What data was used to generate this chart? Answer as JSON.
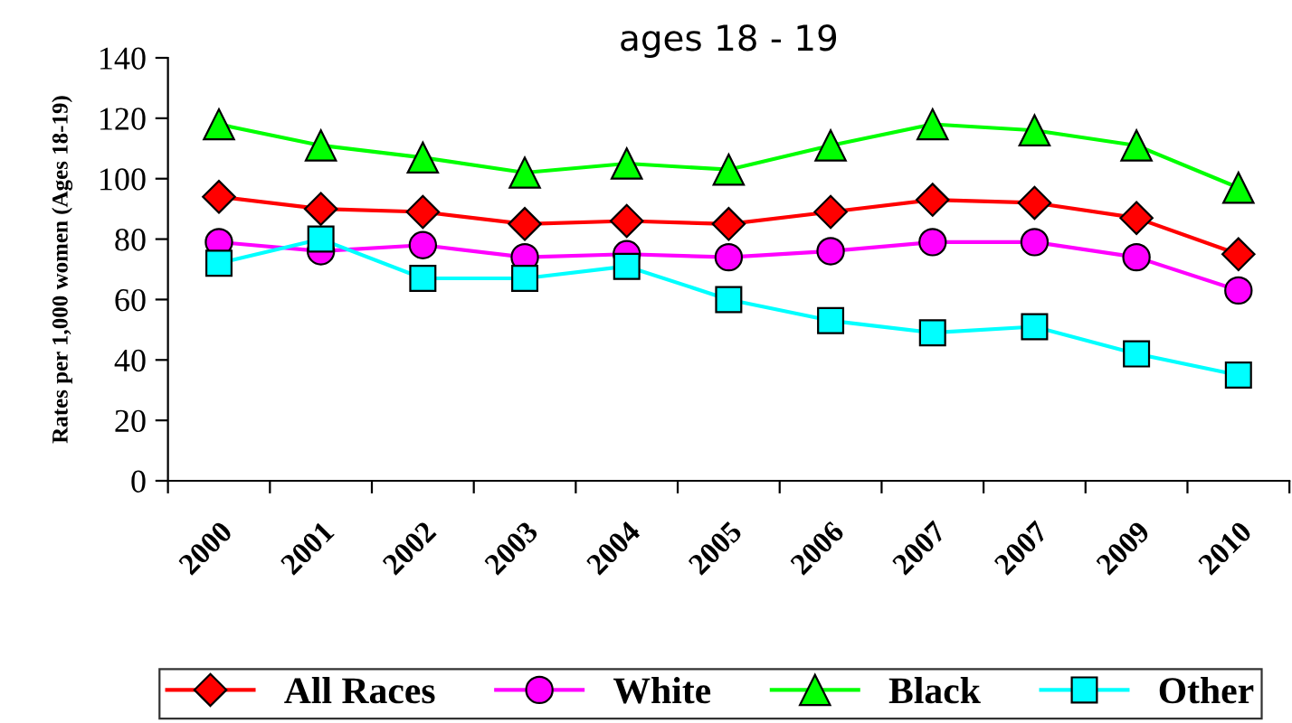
{
  "chart_data": {
    "type": "line",
    "title": "ages 18 - 19",
    "ylabel": "Rates per 1,000 women (Ages 18-19)",
    "categories": [
      "2000",
      "2001",
      "2002",
      "2003",
      "2004",
      "2005",
      "2006",
      "2007",
      "2007",
      "2009",
      "2010"
    ],
    "series": [
      {
        "name": "All Races",
        "color": "#ff0000",
        "marker": "diamond",
        "values": [
          94,
          90,
          89,
          85,
          86,
          85,
          89,
          93,
          92,
          87,
          75
        ]
      },
      {
        "name": "White",
        "color": "#ff00ff",
        "marker": "circle",
        "values": [
          79,
          76,
          78,
          74,
          75,
          74,
          76,
          79,
          79,
          74,
          63
        ]
      },
      {
        "name": "Black",
        "color": "#00ff00",
        "marker": "triangle",
        "values": [
          118,
          111,
          107,
          102,
          105,
          103,
          111,
          118,
          116,
          111,
          97
        ]
      },
      {
        "name": "Other",
        "color": "#00ffff",
        "marker": "square",
        "values": [
          72,
          80,
          67,
          67,
          71,
          60,
          53,
          49,
          51,
          42,
          35
        ]
      }
    ],
    "ylim": [
      0,
      140
    ],
    "yticks": [
      0,
      20,
      40,
      60,
      80,
      100,
      120,
      140
    ],
    "grid": false,
    "legend": "bottom"
  }
}
